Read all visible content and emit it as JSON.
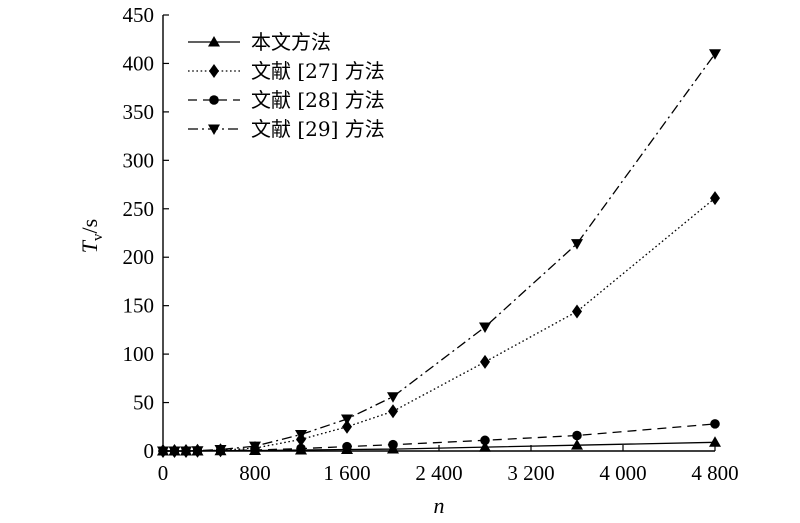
{
  "chart_data": {
    "type": "line",
    "title": "",
    "xlabel": "n",
    "ylabel_main": "T",
    "ylabel_sub": "v",
    "ylabel_unit": "/s",
    "xlim": [
      0,
      4800
    ],
    "ylim": [
      0,
      450
    ],
    "x_ticks": [
      0,
      800,
      1600,
      2400,
      3200,
      4000,
      4800
    ],
    "x_tick_labels": [
      "0",
      "800",
      "1 600",
      "2 400",
      "3 200",
      "4 000",
      "4 800"
    ],
    "y_ticks": [
      0,
      50,
      100,
      150,
      200,
      250,
      300,
      350,
      400,
      450
    ],
    "y_tick_labels": [
      "0",
      "50",
      "100",
      "150",
      "200",
      "250",
      "300",
      "350",
      "400",
      "450"
    ],
    "grid": false,
    "legend_position": "top-left",
    "series": [
      {
        "name": "本文方法",
        "marker": "triangle-up",
        "line_style": "solid",
        "x": [
          0,
          100,
          200,
          300,
          500,
          800,
          1200,
          1600,
          2000,
          2800,
          3600,
          4800
        ],
        "y": [
          0,
          0,
          0,
          0,
          0.3,
          0.5,
          1,
          1.5,
          2,
          4,
          6,
          9
        ]
      },
      {
        "name": "文献 [27] 方法",
        "marker": "diamond",
        "line_style": "dotted",
        "x": [
          0,
          100,
          200,
          300,
          500,
          800,
          1200,
          1600,
          2000,
          2800,
          3600,
          4800
        ],
        "y": [
          0,
          0,
          0,
          0.2,
          0.8,
          3,
          12,
          25,
          41,
          92,
          144,
          261
        ]
      },
      {
        "name": "文献 [28] 方法",
        "marker": "circle",
        "line_style": "dashed",
        "x": [
          0,
          100,
          200,
          300,
          500,
          800,
          1200,
          1600,
          2000,
          2800,
          3600,
          4800
        ],
        "y": [
          0,
          0,
          0,
          0.1,
          0.5,
          1,
          2.5,
          4.5,
          6.5,
          11,
          16,
          28
        ]
      },
      {
        "name": "文献 [29] 方法",
        "marker": "triangle-down",
        "line_style": "dashdot",
        "x": [
          0,
          100,
          200,
          300,
          500,
          800,
          1200,
          1600,
          2000,
          2800,
          3600,
          4800
        ],
        "y": [
          0,
          0,
          0,
          0.3,
          1.5,
          5,
          17,
          33,
          56,
          128,
          214,
          410
        ]
      }
    ]
  }
}
